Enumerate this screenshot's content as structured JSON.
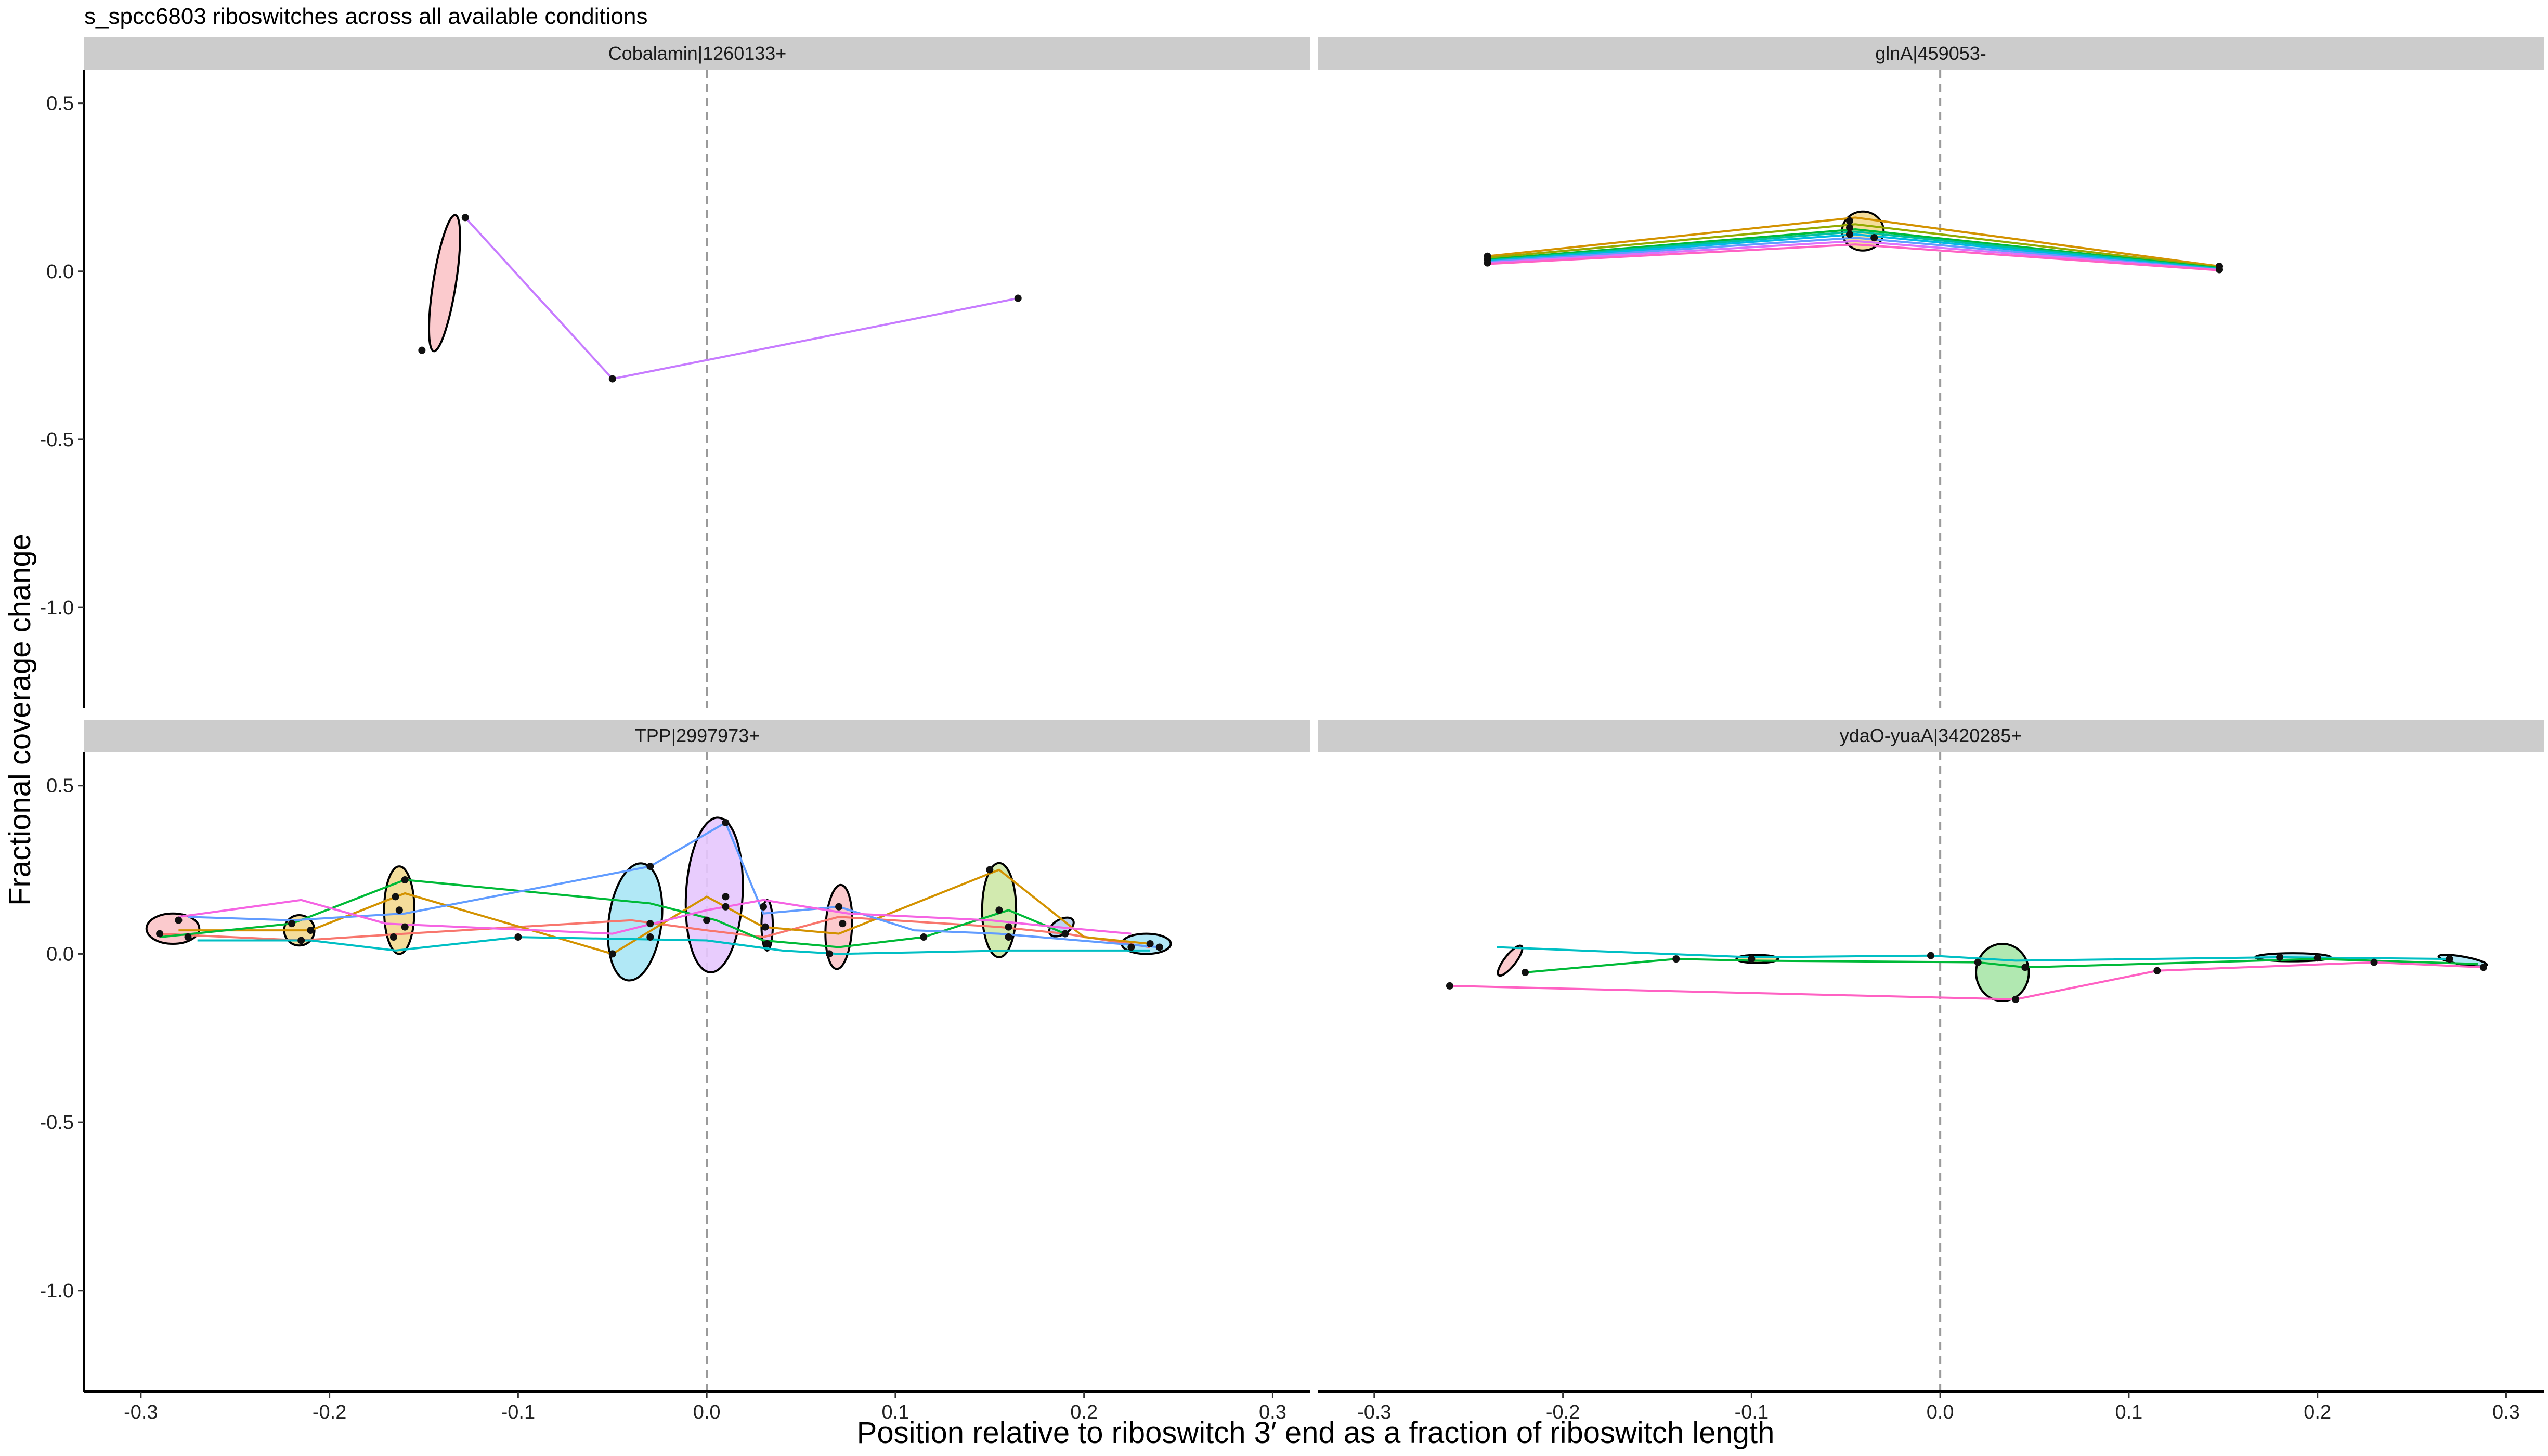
{
  "chart_data": {
    "type": "scatter",
    "title": "s_spcc6803 riboswitches across all available conditions",
    "xlabel": "Position relative to riboswitch 3′ end as a fraction of riboswitch length",
    "ylabel": "Fractional coverage change",
    "xlim": [
      -0.33,
      0.32
    ],
    "ylim": [
      -1.3,
      0.6
    ],
    "xticks": [
      -0.3,
      -0.2,
      -0.1,
      0.0,
      0.1,
      0.2,
      0.3
    ],
    "xtick_labels": [
      "-0.3",
      "-0.2",
      "-0.1",
      "0.0",
      "0.1",
      "0.2",
      "0.3"
    ],
    "yticks": [
      0.5,
      0.0,
      -0.5,
      -1.0
    ],
    "ytick_labels": [
      "0.5",
      "0.0",
      "-0.5",
      "-1.0"
    ],
    "reference_line_x": 0.0,
    "grid": false,
    "legend": "none",
    "panels": [
      {
        "strip": "Cobalamin|1260133+",
        "ellipses": [
          {
            "cx": -0.139,
            "cy": -0.035,
            "rx": 0.006,
            "ry": 0.205,
            "angle": 9,
            "fill": "#fbc4c8"
          }
        ],
        "series": [
          {
            "color": "#c77cff",
            "points": [
              [
                -0.128,
                0.16
              ],
              [
                -0.05,
                -0.32
              ],
              [
                0.165,
                -0.08
              ]
            ]
          }
        ],
        "points": [
          [
            -0.128,
            0.16
          ],
          [
            -0.151,
            -0.235
          ],
          [
            -0.05,
            -0.32
          ],
          [
            0.165,
            -0.08
          ]
        ]
      },
      {
        "strip": "glnA|459053-",
        "ellipses": [
          {
            "cx": -0.041,
            "cy": 0.12,
            "rx": 0.011,
            "ry": 0.058,
            "angle": 0,
            "fill": "#f3d990"
          }
        ],
        "series": [
          {
            "color": "#d39200",
            "points": [
              [
                -0.24,
                0.045
              ],
              [
                -0.045,
                0.16
              ],
              [
                0.148,
                0.015
              ]
            ]
          },
          {
            "color": "#93aa00",
            "points": [
              [
                -0.24,
                0.04
              ],
              [
                -0.045,
                0.14
              ],
              [
                0.148,
                0.012
              ]
            ]
          },
          {
            "color": "#00ba38",
            "points": [
              [
                -0.24,
                0.035
              ],
              [
                -0.045,
                0.125
              ],
              [
                0.148,
                0.01
              ]
            ]
          },
          {
            "color": "#00c19f",
            "points": [
              [
                -0.24,
                0.032
              ],
              [
                -0.045,
                0.118
              ],
              [
                0.148,
                0.008
              ]
            ]
          },
          {
            "color": "#00b9e3",
            "points": [
              [
                -0.24,
                0.03
              ],
              [
                -0.045,
                0.11
              ],
              [
                0.148,
                0.006
              ]
            ]
          },
          {
            "color": "#619cff",
            "points": [
              [
                -0.24,
                0.028
              ],
              [
                -0.045,
                0.1
              ],
              [
                0.148,
                0.005
              ]
            ]
          },
          {
            "color": "#db72fb",
            "points": [
              [
                -0.24,
                0.025
              ],
              [
                -0.045,
                0.09
              ],
              [
                0.148,
                0.004
              ]
            ]
          },
          {
            "color": "#ff61c3",
            "points": [
              [
                -0.24,
                0.022
              ],
              [
                -0.045,
                0.08
              ],
              [
                0.148,
                0.003
              ]
            ]
          }
        ],
        "points": [
          [
            -0.24,
            0.045
          ],
          [
            -0.24,
            0.035
          ],
          [
            -0.24,
            0.025
          ],
          [
            -0.048,
            0.15
          ],
          [
            -0.048,
            0.13
          ],
          [
            -0.048,
            0.11
          ],
          [
            -0.035,
            0.1
          ],
          [
            0.148,
            0.015
          ],
          [
            0.148,
            0.005
          ]
        ]
      },
      {
        "strip": "TPP|2997973+",
        "ellipses": [
          {
            "cx": -0.283,
            "cy": 0.075,
            "rx": 0.014,
            "ry": 0.045,
            "angle": 0,
            "fill": "#fbc4c8"
          },
          {
            "cx": -0.216,
            "cy": 0.07,
            "rx": 0.008,
            "ry": 0.045,
            "angle": 0,
            "fill": "#f3d990"
          },
          {
            "cx": -0.163,
            "cy": 0.13,
            "rx": 0.008,
            "ry": 0.13,
            "angle": 0,
            "fill": "#f3d990"
          },
          {
            "cx": -0.038,
            "cy": 0.095,
            "rx": 0.014,
            "ry": 0.175,
            "angle": 7,
            "fill": "#a8e6f5"
          },
          {
            "cx": 0.004,
            "cy": 0.175,
            "rx": 0.015,
            "ry": 0.23,
            "angle": 3,
            "fill": "#e6c6fd"
          },
          {
            "cx": 0.032,
            "cy": 0.085,
            "rx": 0.003,
            "ry": 0.075,
            "angle": 0,
            "fill": "#e6c6fd"
          },
          {
            "cx": 0.07,
            "cy": 0.08,
            "rx": 0.007,
            "ry": 0.125,
            "angle": 3,
            "fill": "#fbc4c8"
          },
          {
            "cx": 0.155,
            "cy": 0.13,
            "rx": 0.009,
            "ry": 0.14,
            "angle": 0,
            "fill": "#cde8a6"
          },
          {
            "cx": 0.188,
            "cy": 0.08,
            "rx": 0.004,
            "ry": 0.04,
            "angle": 60,
            "fill": "#b6cfee"
          },
          {
            "cx": 0.233,
            "cy": 0.03,
            "rx": 0.013,
            "ry": 0.03,
            "angle": 0,
            "fill": "#a8e6f5"
          }
        ],
        "series": [
          {
            "color": "#f8766d",
            "points": [
              [
                -0.29,
                0.06
              ],
              [
                -0.215,
                0.04
              ],
              [
                -0.16,
                0.06
              ],
              [
                -0.04,
                0.1
              ],
              [
                0.0,
                0.07
              ],
              [
                0.03,
                0.05
              ],
              [
                0.07,
                0.11
              ],
              [
                0.155,
                0.08
              ],
              [
                0.19,
                0.06
              ],
              [
                0.235,
                0.02
              ]
            ]
          },
          {
            "color": "#d39200",
            "points": [
              [
                -0.28,
                0.07
              ],
              [
                -0.21,
                0.07
              ],
              [
                -0.16,
                0.18
              ],
              [
                -0.05,
                0.0
              ],
              [
                0.0,
                0.17
              ],
              [
                0.03,
                0.08
              ],
              [
                0.07,
                0.06
              ],
              [
                0.155,
                0.25
              ],
              [
                0.2,
                0.05
              ],
              [
                0.235,
                0.03
              ]
            ]
          },
          {
            "color": "#00ba38",
            "points": [
              [
                -0.29,
                0.05
              ],
              [
                -0.22,
                0.09
              ],
              [
                -0.16,
                0.22
              ],
              [
                -0.03,
                0.15
              ],
              [
                0.005,
                0.1
              ],
              [
                0.03,
                0.04
              ],
              [
                0.07,
                0.02
              ],
              [
                0.115,
                0.05
              ],
              [
                0.16,
                0.13
              ],
              [
                0.19,
                0.06
              ]
            ]
          },
          {
            "color": "#00bfc4",
            "points": [
              [
                -0.27,
                0.04
              ],
              [
                -0.21,
                0.04
              ],
              [
                -0.165,
                0.01
              ],
              [
                -0.1,
                0.05
              ],
              [
                0.0,
                0.04
              ],
              [
                0.04,
                0.01
              ],
              [
                0.07,
                0.0
              ],
              [
                0.16,
                0.01
              ],
              [
                0.235,
                0.01
              ]
            ]
          },
          {
            "color": "#619cff",
            "points": [
              [
                -0.275,
                0.11
              ],
              [
                -0.22,
                0.1
              ],
              [
                -0.16,
                0.12
              ],
              [
                -0.03,
                0.26
              ],
              [
                0.01,
                0.39
              ],
              [
                0.03,
                0.12
              ],
              [
                0.07,
                0.14
              ],
              [
                0.11,
                0.07
              ],
              [
                0.155,
                0.06
              ],
              [
                0.24,
                0.02
              ]
            ]
          },
          {
            "color": "#f564e3",
            "points": [
              [
                -0.28,
                0.11
              ],
              [
                -0.215,
                0.16
              ],
              [
                -0.17,
                0.09
              ],
              [
                -0.05,
                0.06
              ],
              [
                0.0,
                0.13
              ],
              [
                0.03,
                0.16
              ],
              [
                0.075,
                0.12
              ],
              [
                0.15,
                0.1
              ],
              [
                0.185,
                0.08
              ],
              [
                0.225,
                0.06
              ]
            ]
          }
        ],
        "points": [
          [
            -0.29,
            0.06
          ],
          [
            -0.28,
            0.1
          ],
          [
            -0.275,
            0.05
          ],
          [
            -0.215,
            0.04
          ],
          [
            -0.22,
            0.09
          ],
          [
            -0.21,
            0.07
          ],
          [
            -0.16,
            0.22
          ],
          [
            -0.165,
            0.17
          ],
          [
            -0.163,
            0.13
          ],
          [
            -0.16,
            0.08
          ],
          [
            -0.166,
            0.05
          ],
          [
            -0.1,
            0.05
          ],
          [
            -0.05,
            0.0
          ],
          [
            -0.03,
            0.26
          ],
          [
            -0.03,
            0.09
          ],
          [
            -0.03,
            0.05
          ],
          [
            0.0,
            0.1
          ],
          [
            0.01,
            0.39
          ],
          [
            0.01,
            0.17
          ],
          [
            0.01,
            0.14
          ],
          [
            0.03,
            0.14
          ],
          [
            0.031,
            0.08
          ],
          [
            0.032,
            0.03
          ],
          [
            0.07,
            0.14
          ],
          [
            0.072,
            0.09
          ],
          [
            0.065,
            0.0
          ],
          [
            0.115,
            0.05
          ],
          [
            0.15,
            0.25
          ],
          [
            0.155,
            0.13
          ],
          [
            0.16,
            0.08
          ],
          [
            0.16,
            0.05
          ],
          [
            0.19,
            0.06
          ],
          [
            0.225,
            0.02
          ],
          [
            0.235,
            0.03
          ],
          [
            0.24,
            0.02
          ]
        ]
      },
      {
        "strip": "ydaO-yuaA|3420285+",
        "ellipses": [
          {
            "cx": -0.228,
            "cy": -0.02,
            "rx": 0.003,
            "ry": 0.055,
            "angle": 38,
            "fill": "#fbc4c8"
          },
          {
            "cx": -0.097,
            "cy": -0.015,
            "rx": 0.011,
            "ry": 0.012,
            "angle": 0,
            "fill": "#f3d990"
          },
          {
            "cx": 0.033,
            "cy": -0.055,
            "rx": 0.014,
            "ry": 0.085,
            "angle": 0,
            "fill": "#a8e6a8"
          },
          {
            "cx": 0.187,
            "cy": -0.01,
            "rx": 0.02,
            "ry": 0.012,
            "angle": 0,
            "fill": "#a8e6f5"
          },
          {
            "cx": 0.277,
            "cy": -0.02,
            "rx": 0.013,
            "ry": 0.012,
            "angle": 10,
            "fill": "#a8e6f5"
          }
        ],
        "series": [
          {
            "color": "#00bfc4",
            "points": [
              [
                -0.235,
                0.02
              ],
              [
                -0.1,
                -0.01
              ],
              [
                -0.005,
                -0.005
              ],
              [
                0.04,
                -0.02
              ],
              [
                0.18,
                -0.01
              ],
              [
                0.27,
                -0.015
              ]
            ]
          },
          {
            "color": "#00ba38",
            "points": [
              [
                -0.22,
                -0.055
              ],
              [
                -0.14,
                -0.015
              ],
              [
                -0.1,
                -0.02
              ],
              [
                0.02,
                -0.025
              ],
              [
                0.045,
                -0.04
              ],
              [
                0.2,
                -0.015
              ],
              [
                0.285,
                -0.03
              ]
            ]
          },
          {
            "color": "#ff61c3",
            "points": [
              [
                -0.26,
                -0.095
              ],
              [
                0.04,
                -0.135
              ],
              [
                0.115,
                -0.05
              ],
              [
                0.23,
                -0.025
              ],
              [
                0.288,
                -0.04
              ]
            ]
          }
        ],
        "points": [
          [
            -0.26,
            -0.095
          ],
          [
            -0.22,
            -0.055
          ],
          [
            -0.14,
            -0.015
          ],
          [
            -0.1,
            -0.015
          ],
          [
            -0.005,
            -0.005
          ],
          [
            0.02,
            -0.025
          ],
          [
            0.04,
            -0.135
          ],
          [
            0.045,
            -0.04
          ],
          [
            0.115,
            -0.05
          ],
          [
            0.18,
            -0.01
          ],
          [
            0.2,
            -0.012
          ],
          [
            0.23,
            -0.025
          ],
          [
            0.27,
            -0.015
          ],
          [
            0.288,
            -0.04
          ]
        ]
      }
    ]
  }
}
